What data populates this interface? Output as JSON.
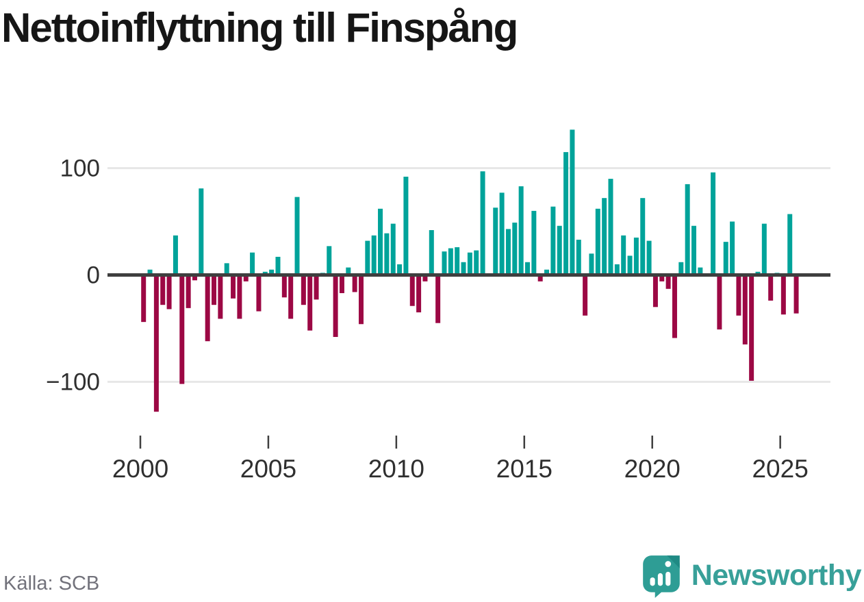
{
  "title": "Nettoinflyttning till Finspång",
  "source": "Källa: SCB",
  "branding": {
    "name": "Newsworthy",
    "logo_icon": "speech-bubble-with-bar-chart-and-exclamation"
  },
  "colors": {
    "positive": "#00a39a",
    "negative": "#9c0844",
    "zero_axis": "#3f3f3f",
    "grid": "#e7e7e7",
    "tick_text": "#2f2f2f",
    "title_text": "#161616",
    "muted_text": "#72727b",
    "brand": "#38a099",
    "brand_dark": "#1f8a84"
  },
  "chart_data": {
    "type": "bar",
    "title": "Nettoinflyttning till Finspång",
    "start_year": 2000,
    "start_quarter": 1,
    "frequency": "quarterly",
    "values": [
      -44,
      5,
      -128,
      -28,
      -32,
      37,
      -102,
      -31,
      -5,
      81,
      -62,
      -28,
      -41,
      11,
      -22,
      -41,
      -6,
      21,
      -34,
      3,
      5,
      17,
      -21,
      -41,
      73,
      -28,
      -52,
      -23,
      2,
      27,
      -58,
      -17,
      7,
      -16,
      -46,
      32,
      37,
      62,
      39,
      48,
      10,
      92,
      -29,
      -35,
      -6,
      42,
      -45,
      22,
      25,
      26,
      12,
      21,
      23,
      97,
      0,
      63,
      77,
      43,
      49,
      83,
      12,
      60,
      -6,
      5,
      64,
      46,
      115,
      136,
      33,
      -38,
      20,
      62,
      72,
      90,
      10,
      37,
      18,
      35,
      72,
      32,
      -30,
      -6,
      -13,
      -59,
      12,
      85,
      46,
      7,
      0,
      96,
      -51,
      31,
      50,
      -38,
      -65,
      -99,
      3,
      48,
      -24,
      2,
      -37,
      57,
      -36
    ],
    "x_ticks": [
      2000,
      2005,
      2010,
      2015,
      2020,
      2025
    ],
    "y_ticks": [
      100,
      0,
      -100
    ],
    "ylim": [
      -145,
      150
    ],
    "grid": true,
    "legend": "none",
    "positive_meaning": "net in-migration",
    "negative_meaning": "net out-migration"
  }
}
